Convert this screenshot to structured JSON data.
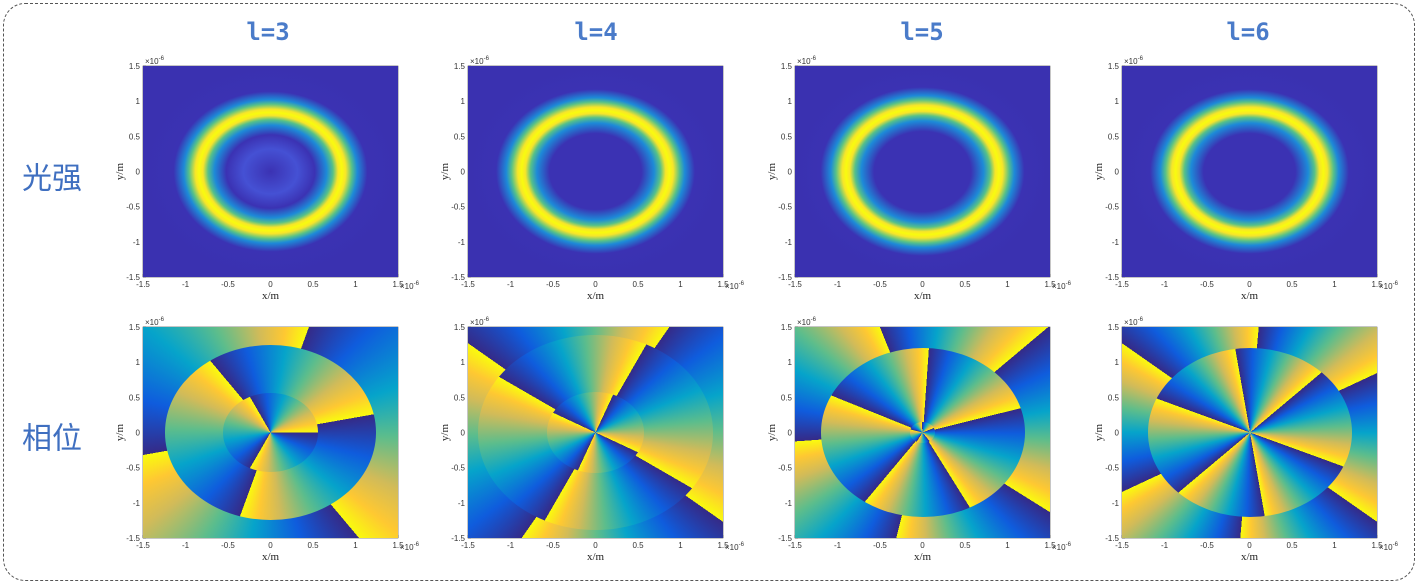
{
  "columns": [
    {
      "label": "l=3"
    },
    {
      "label": "l=4"
    },
    {
      "label": "l=5"
    },
    {
      "label": "l=6"
    }
  ],
  "rows": [
    {
      "label": "光强"
    },
    {
      "label": "相位"
    }
  ],
  "axes": {
    "xlabel": "x/m",
    "ylabel": "y/m",
    "ticks": [
      -1.5,
      -1,
      -0.5,
      0,
      0.5,
      1,
      1.5
    ],
    "scale_base": "×10",
    "scale_power": "-6"
  }
}
